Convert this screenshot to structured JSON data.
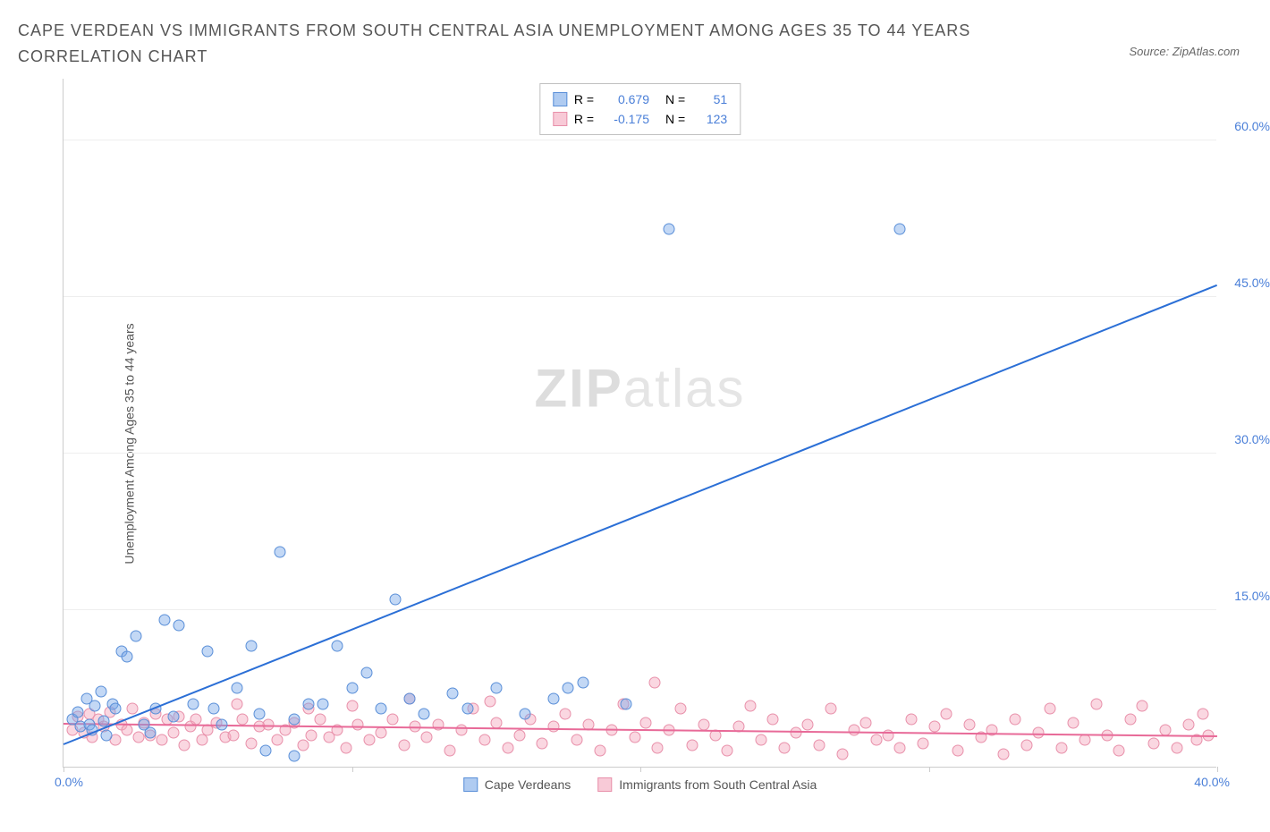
{
  "title": "CAPE VERDEAN VS IMMIGRANTS FROM SOUTH CENTRAL ASIA UNEMPLOYMENT AMONG AGES 35 TO 44 YEARS CORRELATION CHART",
  "source": "Source: ZipAtlas.com",
  "y_label": "Unemployment Among Ages 35 to 44 years",
  "watermark_bold": "ZIP",
  "watermark_light": "atlas",
  "chart": {
    "type": "scatter",
    "xlim": [
      0,
      40
    ],
    "ylim": [
      0,
      66
    ],
    "x_ticks": [
      0,
      10,
      20,
      30,
      40
    ],
    "y_ticks": [
      {
        "v": 15,
        "label": "15.0%"
      },
      {
        "v": 30,
        "label": "30.0%"
      },
      {
        "v": 45,
        "label": "45.0%"
      },
      {
        "v": 60,
        "label": "60.0%"
      }
    ],
    "x_origin_label": "0.0%",
    "x_end_label": "40.0%",
    "background_color": "#ffffff",
    "grid_color": "#eeeeee",
    "axis_color": "#cccccc",
    "series": [
      {
        "key": "blue",
        "name": "Cape Verdeans",
        "color_fill": "rgba(122,169,232,0.45)",
        "color_stroke": "#5a8fd8",
        "r_label": "R =",
        "r": "0.679",
        "n_label": "N =",
        "n": "51",
        "trend": {
          "x1": 0,
          "y1": 2.0,
          "x2": 40,
          "y2": 46.0,
          "color": "#2b6fd6"
        },
        "points": [
          [
            0.3,
            4.5
          ],
          [
            0.5,
            5.2
          ],
          [
            0.6,
            3.8
          ],
          [
            0.8,
            6.5
          ],
          [
            0.9,
            4.0
          ],
          [
            1.0,
            3.5
          ],
          [
            1.1,
            5.8
          ],
          [
            1.3,
            7.2
          ],
          [
            1.4,
            4.3
          ],
          [
            1.5,
            3.0
          ],
          [
            1.7,
            6.0
          ],
          [
            1.8,
            5.5
          ],
          [
            2.0,
            11.0
          ],
          [
            2.2,
            10.5
          ],
          [
            2.5,
            12.5
          ],
          [
            2.8,
            4.0
          ],
          [
            3.0,
            3.2
          ],
          [
            3.2,
            5.5
          ],
          [
            3.5,
            14.0
          ],
          [
            3.8,
            4.8
          ],
          [
            4.0,
            13.5
          ],
          [
            4.5,
            6.0
          ],
          [
            5.0,
            11.0
          ],
          [
            5.2,
            5.5
          ],
          [
            5.5,
            4.0
          ],
          [
            6.0,
            7.5
          ],
          [
            6.5,
            11.5
          ],
          [
            7.0,
            1.5
          ],
          [
            7.5,
            20.5
          ],
          [
            8.0,
            4.5
          ],
          [
            8.0,
            1.0
          ],
          [
            8.5,
            6.0
          ],
          [
            9.5,
            11.5
          ],
          [
            10.0,
            7.5
          ],
          [
            10.5,
            9.0
          ],
          [
            11.0,
            5.5
          ],
          [
            11.5,
            16.0
          ],
          [
            12.0,
            6.5
          ],
          [
            12.5,
            5.0
          ],
          [
            13.5,
            7.0
          ],
          [
            14.0,
            5.5
          ],
          [
            15.0,
            7.5
          ],
          [
            16.0,
            5.0
          ],
          [
            17.0,
            6.5
          ],
          [
            18.0,
            8.0
          ],
          [
            21.0,
            51.5
          ],
          [
            29.0,
            51.5
          ],
          [
            19.5,
            6.0
          ],
          [
            17.5,
            7.5
          ],
          [
            9.0,
            6.0
          ],
          [
            6.8,
            5.0
          ]
        ]
      },
      {
        "key": "pink",
        "name": "Immigrants from South Central Asia",
        "color_fill": "rgba(244,166,188,0.45)",
        "color_stroke": "#e890aa",
        "r_label": "R =",
        "r": "-0.175",
        "n_label": "N =",
        "n": "123",
        "trend": {
          "x1": 0,
          "y1": 4.0,
          "x2": 40,
          "y2": 2.8,
          "color": "#e86a98"
        },
        "points": [
          [
            0.3,
            3.5
          ],
          [
            0.5,
            4.8
          ],
          [
            0.7,
            3.2
          ],
          [
            0.9,
            5.0
          ],
          [
            1.0,
            2.8
          ],
          [
            1.2,
            4.5
          ],
          [
            1.4,
            3.8
          ],
          [
            1.6,
            5.2
          ],
          [
            1.8,
            2.5
          ],
          [
            2.0,
            4.0
          ],
          [
            2.2,
            3.5
          ],
          [
            2.4,
            5.5
          ],
          [
            2.6,
            2.8
          ],
          [
            2.8,
            4.2
          ],
          [
            3.0,
            3.0
          ],
          [
            3.2,
            5.0
          ],
          [
            3.4,
            2.5
          ],
          [
            3.6,
            4.5
          ],
          [
            3.8,
            3.2
          ],
          [
            4.0,
            4.8
          ],
          [
            4.2,
            2.0
          ],
          [
            4.4,
            3.8
          ],
          [
            4.6,
            4.5
          ],
          [
            4.8,
            2.5
          ],
          [
            5.0,
            3.5
          ],
          [
            5.3,
            4.2
          ],
          [
            5.6,
            2.8
          ],
          [
            5.9,
            3.0
          ],
          [
            6.2,
            4.5
          ],
          [
            6.5,
            2.2
          ],
          [
            6.8,
            3.8
          ],
          [
            7.1,
            4.0
          ],
          [
            7.4,
            2.5
          ],
          [
            7.7,
            3.5
          ],
          [
            8.0,
            4.2
          ],
          [
            8.3,
            2.0
          ],
          [
            8.6,
            3.0
          ],
          [
            8.9,
            4.5
          ],
          [
            9.2,
            2.8
          ],
          [
            9.5,
            3.5
          ],
          [
            9.8,
            1.8
          ],
          [
            10.2,
            4.0
          ],
          [
            10.6,
            2.5
          ],
          [
            11.0,
            3.2
          ],
          [
            11.4,
            4.5
          ],
          [
            11.8,
            2.0
          ],
          [
            12.2,
            3.8
          ],
          [
            12.6,
            2.8
          ],
          [
            13.0,
            4.0
          ],
          [
            13.4,
            1.5
          ],
          [
            13.8,
            3.5
          ],
          [
            14.2,
            5.5
          ],
          [
            14.6,
            2.5
          ],
          [
            15.0,
            4.2
          ],
          [
            15.4,
            1.8
          ],
          [
            15.8,
            3.0
          ],
          [
            16.2,
            4.5
          ],
          [
            16.6,
            2.2
          ],
          [
            17.0,
            3.8
          ],
          [
            17.4,
            5.0
          ],
          [
            17.8,
            2.5
          ],
          [
            18.2,
            4.0
          ],
          [
            18.6,
            1.5
          ],
          [
            19.0,
            3.5
          ],
          [
            19.4,
            6.0
          ],
          [
            19.8,
            2.8
          ],
          [
            20.2,
            4.2
          ],
          [
            20.6,
            1.8
          ],
          [
            21.0,
            3.5
          ],
          [
            21.4,
            5.5
          ],
          [
            21.8,
            2.0
          ],
          [
            22.2,
            4.0
          ],
          [
            22.6,
            3.0
          ],
          [
            23.0,
            1.5
          ],
          [
            23.4,
            3.8
          ],
          [
            23.8,
            5.8
          ],
          [
            24.2,
            2.5
          ],
          [
            24.6,
            4.5
          ],
          [
            25.0,
            1.8
          ],
          [
            25.4,
            3.2
          ],
          [
            25.8,
            4.0
          ],
          [
            26.2,
            2.0
          ],
          [
            26.6,
            5.5
          ],
          [
            27.0,
            1.2
          ],
          [
            27.4,
            3.5
          ],
          [
            27.8,
            4.2
          ],
          [
            28.2,
            2.5
          ],
          [
            28.6,
            3.0
          ],
          [
            29.0,
            1.8
          ],
          [
            29.4,
            4.5
          ],
          [
            29.8,
            2.2
          ],
          [
            30.2,
            3.8
          ],
          [
            30.6,
            5.0
          ],
          [
            31.0,
            1.5
          ],
          [
            31.4,
            4.0
          ],
          [
            31.8,
            2.8
          ],
          [
            32.2,
            3.5
          ],
          [
            32.6,
            1.2
          ],
          [
            33.0,
            4.5
          ],
          [
            33.4,
            2.0
          ],
          [
            33.8,
            3.2
          ],
          [
            34.2,
            5.5
          ],
          [
            34.6,
            1.8
          ],
          [
            35.0,
            4.2
          ],
          [
            35.4,
            2.5
          ],
          [
            35.8,
            6.0
          ],
          [
            36.2,
            3.0
          ],
          [
            36.6,
            1.5
          ],
          [
            37.0,
            4.5
          ],
          [
            37.4,
            5.8
          ],
          [
            37.8,
            2.2
          ],
          [
            38.2,
            3.5
          ],
          [
            38.6,
            1.8
          ],
          [
            39.0,
            4.0
          ],
          [
            39.3,
            2.5
          ],
          [
            39.5,
            5.0
          ],
          [
            39.7,
            3.0
          ],
          [
            20.5,
            8.0
          ],
          [
            14.8,
            6.2
          ],
          [
            12.0,
            6.5
          ],
          [
            10.0,
            5.8
          ],
          [
            8.5,
            5.5
          ],
          [
            6.0,
            6.0
          ]
        ]
      }
    ]
  }
}
